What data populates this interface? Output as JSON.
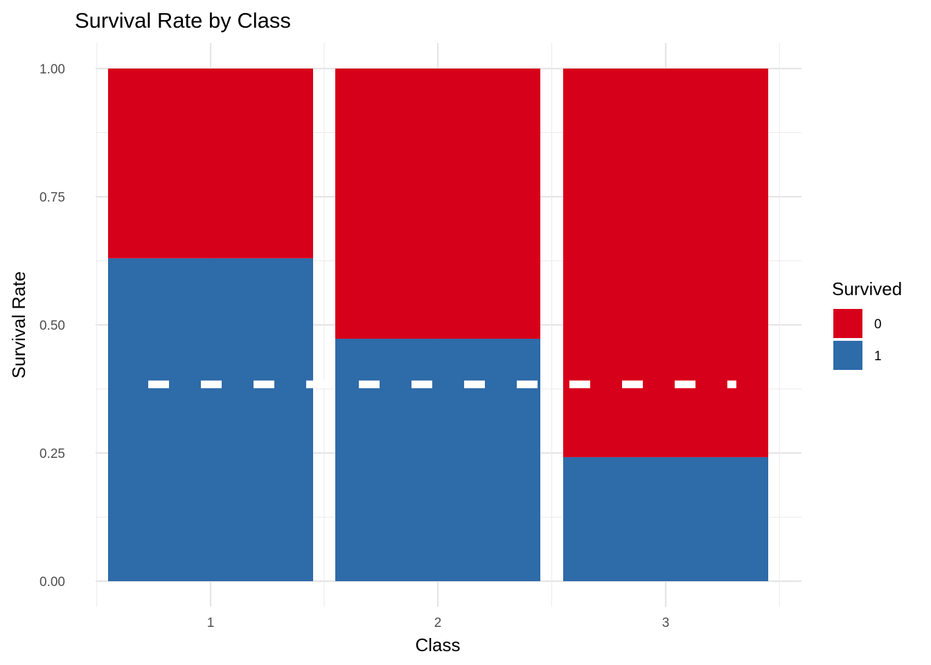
{
  "chart_data": {
    "type": "bar",
    "stacked": true,
    "title": "Survival Rate by Class",
    "xlabel": "Class",
    "ylabel": "Survival Rate",
    "categories": [
      "1",
      "2",
      "3"
    ],
    "ylim": [
      0,
      1
    ],
    "yticks": [
      0,
      0.25,
      0.5,
      0.75,
      1
    ],
    "ytick_labels": [
      "0.00",
      "0.25",
      "0.50",
      "0.75",
      "1.00"
    ],
    "series": [
      {
        "name": "1",
        "values": [
          0.63,
          0.473,
          0.242
        ],
        "color": "#2E6BA9"
      },
      {
        "name": "0",
        "values": [
          0.37,
          0.527,
          0.758
        ],
        "color": "#D7001A"
      }
    ],
    "legend": {
      "title": "Survived",
      "position": "right",
      "entries": [
        {
          "label": "0",
          "color": "#D7001A"
        },
        {
          "label": "1",
          "color": "#2E6BA9"
        }
      ]
    },
    "reference_line": {
      "y": 0.384,
      "style": "dashed",
      "color": "#ffffff"
    },
    "grid": true
  }
}
